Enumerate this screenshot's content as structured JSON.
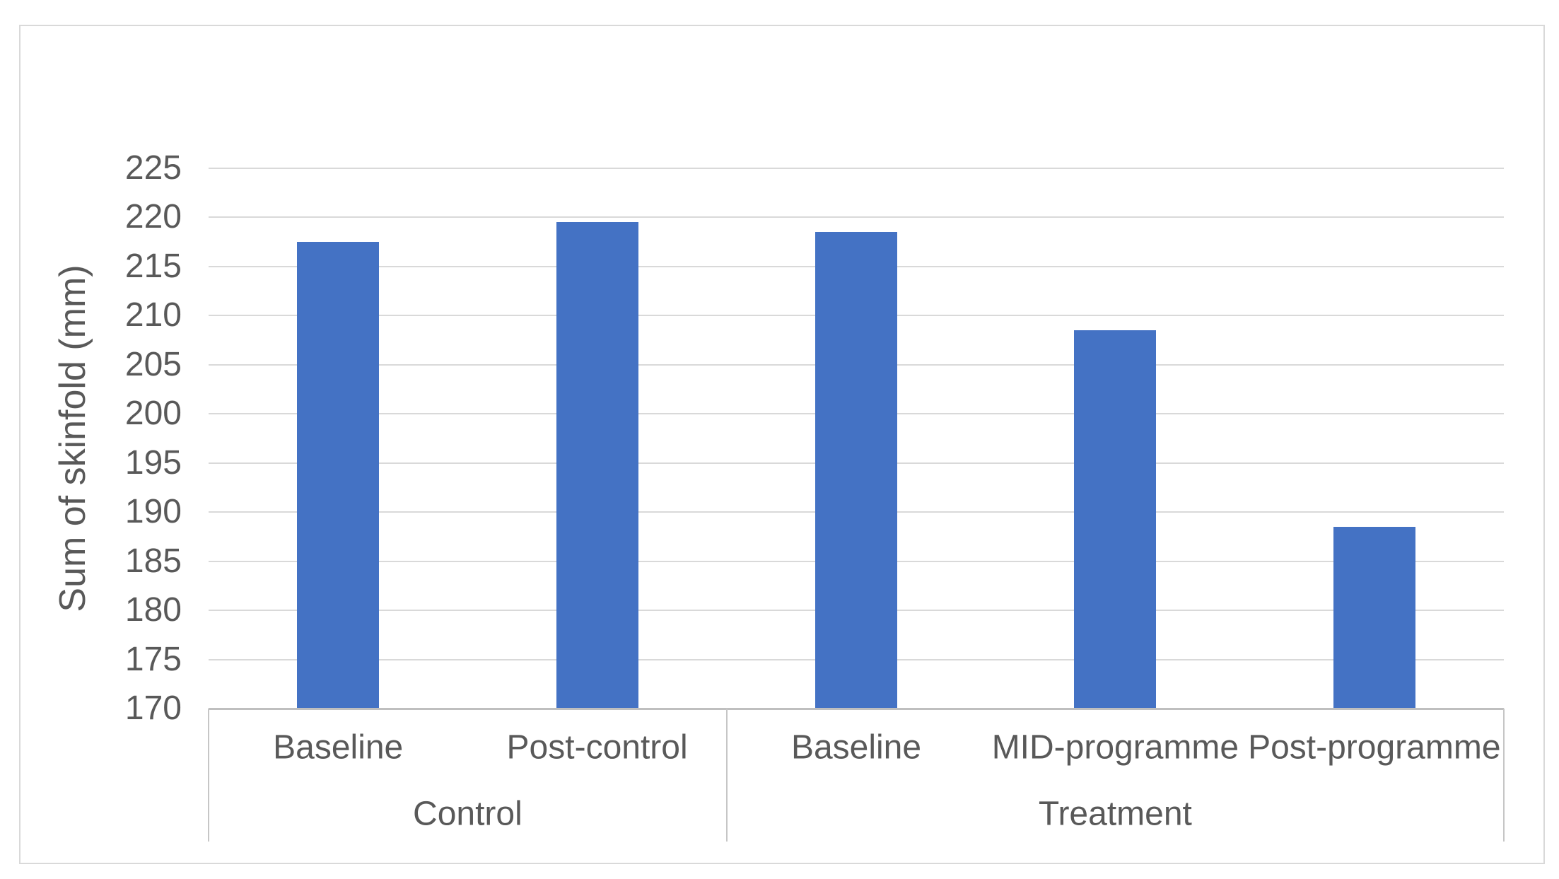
{
  "chart_data": {
    "type": "bar",
    "title": "",
    "xlabel": "",
    "ylabel": "Sum of skinfold (mm)",
    "ylim": [
      170,
      225
    ],
    "ytick_step": 5,
    "ytick_labels": [
      "170",
      "175",
      "180",
      "185",
      "190",
      "195",
      "200",
      "205",
      "210",
      "215",
      "220",
      "225"
    ],
    "grid": "horizontal",
    "legend_position": "none",
    "groups": [
      {
        "label": "Control",
        "categories": [
          "Baseline",
          "Post-control"
        ],
        "values": [
          217.5,
          219.5
        ]
      },
      {
        "label": "Treatment",
        "categories": [
          "Baseline",
          "MID-programme",
          "Post-programme"
        ],
        "values": [
          218.5,
          208.5,
          188.5
        ]
      }
    ],
    "series": [
      {
        "name": "Sum of skinfold (mm)",
        "values": [
          217.5,
          219.5,
          218.5,
          208.5,
          188.5
        ]
      }
    ],
    "categories_flat": [
      "Baseline",
      "Post-control",
      "Baseline",
      "MID-programme",
      "Post-programme"
    ]
  },
  "colors": {
    "bar": "#4472C4",
    "gridline": "#D9D9D9",
    "axis_line": "#BFBFBF",
    "divider_line": "#C6C6C6",
    "text": "#595959",
    "chart_border": "#D9D9D9",
    "background": "#FFFFFF"
  }
}
